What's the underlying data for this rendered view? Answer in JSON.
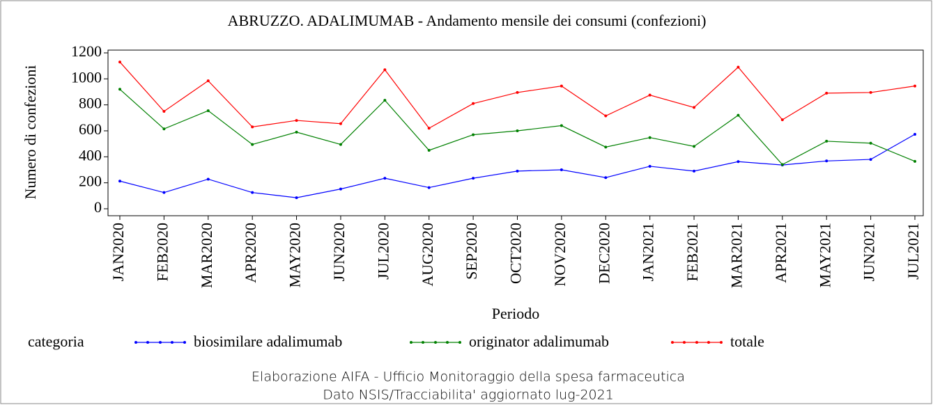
{
  "chart_data": {
    "type": "line",
    "title": "ABRUZZO. ADALIMUMAB - Andamento mensile dei consumi (confezioni)",
    "x_label": "Periodo",
    "y_label": "Numero di confezioni",
    "legend_title": "categoria",
    "notes": [
      "Elaborazione AIFA - Ufficio Monitoraggio della spesa farmaceutica",
      "Dato NSIS/Tracciabilita' aggiornato lug-2021"
    ],
    "categories": [
      "JAN2020",
      "FEB2020",
      "MAR2020",
      "APR2020",
      "MAY2020",
      "JUN2020",
      "JUL2020",
      "AUG2020",
      "SEP2020",
      "OCT2020",
      "NOV2020",
      "DEC2020",
      "JAN2021",
      "FEB2021",
      "MAR2021",
      "APR2021",
      "MAY2021",
      "JUN2021",
      "JUL2021"
    ],
    "series": [
      {
        "name": "biosimilare adalimumab",
        "color": "#0000ff",
        "values": [
          213,
          125,
          228,
          125,
          85,
          152,
          235,
          163,
          235,
          290,
          300,
          240,
          327,
          290,
          363,
          337,
          368,
          380,
          573
        ]
      },
      {
        "name": "originator adalimumab",
        "color": "#008000",
        "values": [
          920,
          615,
          755,
          495,
          590,
          495,
          835,
          450,
          570,
          600,
          640,
          475,
          548,
          480,
          720,
          340,
          520,
          505,
          365
        ]
      },
      {
        "name": "totale",
        "color": "#ff0000",
        "values": [
          1130,
          750,
          985,
          630,
          680,
          655,
          1070,
          620,
          810,
          895,
          945,
          715,
          875,
          780,
          1090,
          685,
          890,
          895,
          945
        ]
      }
    ],
    "ylim": [
      0,
      1200
    ],
    "yticks": [
      0,
      200,
      400,
      600,
      800,
      1000,
      1200
    ]
  }
}
